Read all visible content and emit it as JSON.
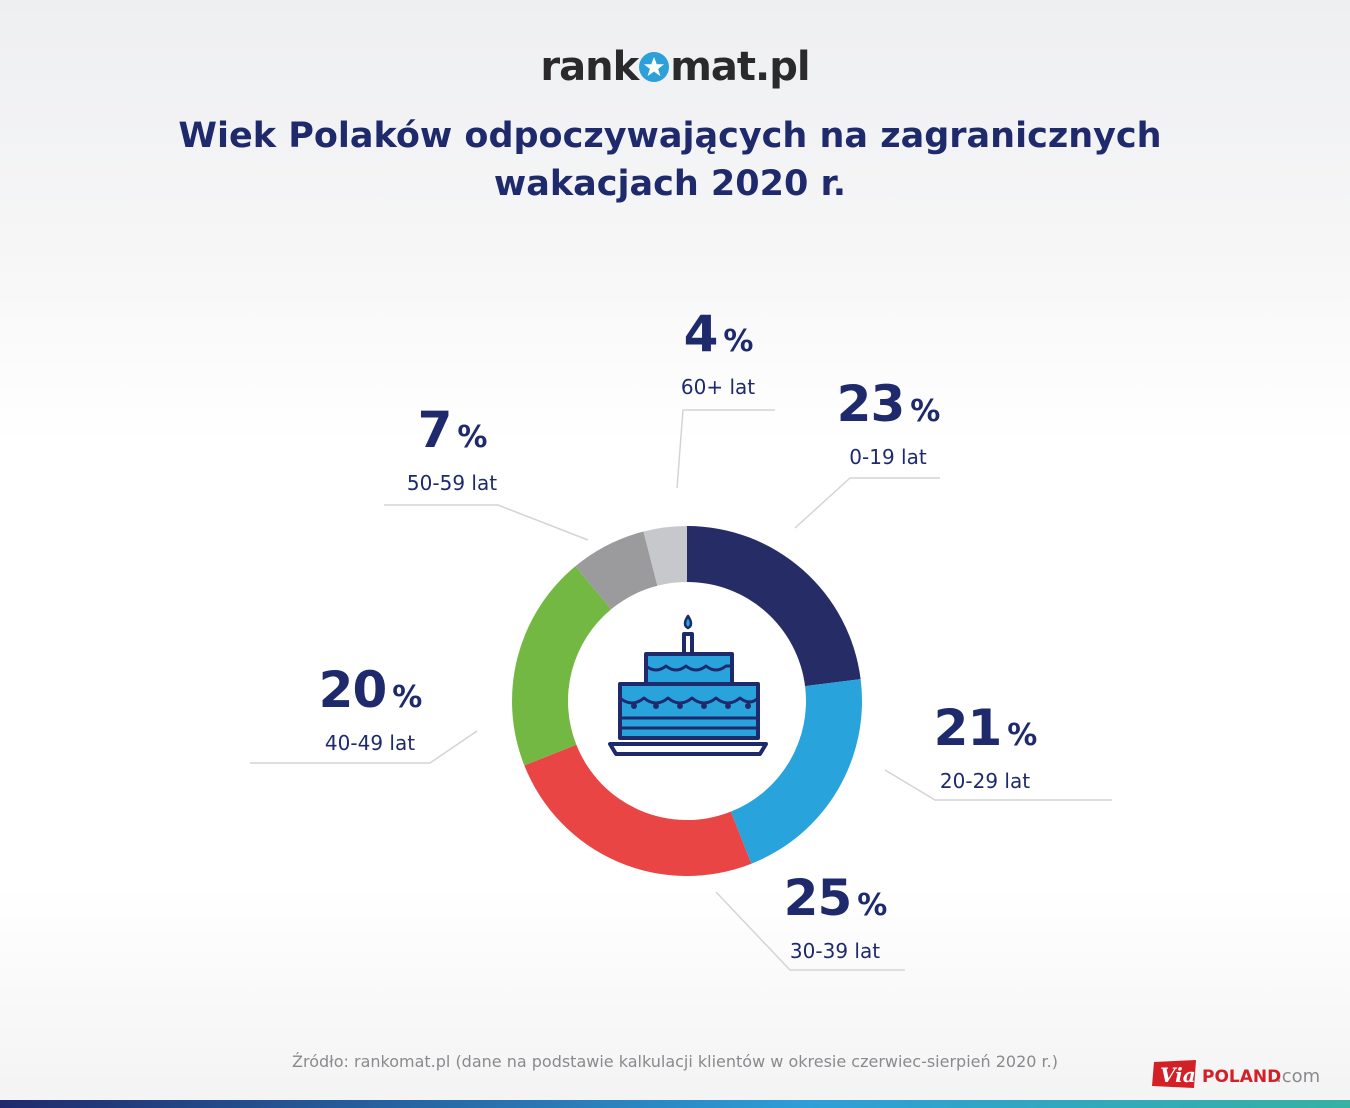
{
  "brand": {
    "logo_prefix": "rank",
    "logo_suffix": "mat.pl"
  },
  "title_line1": "Wiek Polaków odpoczywających na zagranicznych",
  "title_line2": "wakacjach 2020 r.",
  "source": "Źródło: rankomat.pl (dane na podstawie kalkulacji klientów w okresie czerwiec-sierpień 2020 r.)",
  "center_icon": "birthday-cake-icon",
  "watermark": {
    "via": "Via",
    "poland": "POLAND",
    "com": ".com"
  },
  "chart_data": {
    "type": "pie",
    "variant": "donut",
    "categories": [
      "0-19 lat",
      "20-29 lat",
      "30-39 lat",
      "40-49 lat",
      "50-59 lat",
      "60+ lat"
    ],
    "values": [
      23,
      21,
      25,
      20,
      7,
      4
    ],
    "unit": "%",
    "colors": [
      "#262d66",
      "#29a3dc",
      "#e94545",
      "#74b844",
      "#9b9b9d",
      "#c7c8cb"
    ],
    "start_angle_deg": 0,
    "direction": "clockwise"
  }
}
